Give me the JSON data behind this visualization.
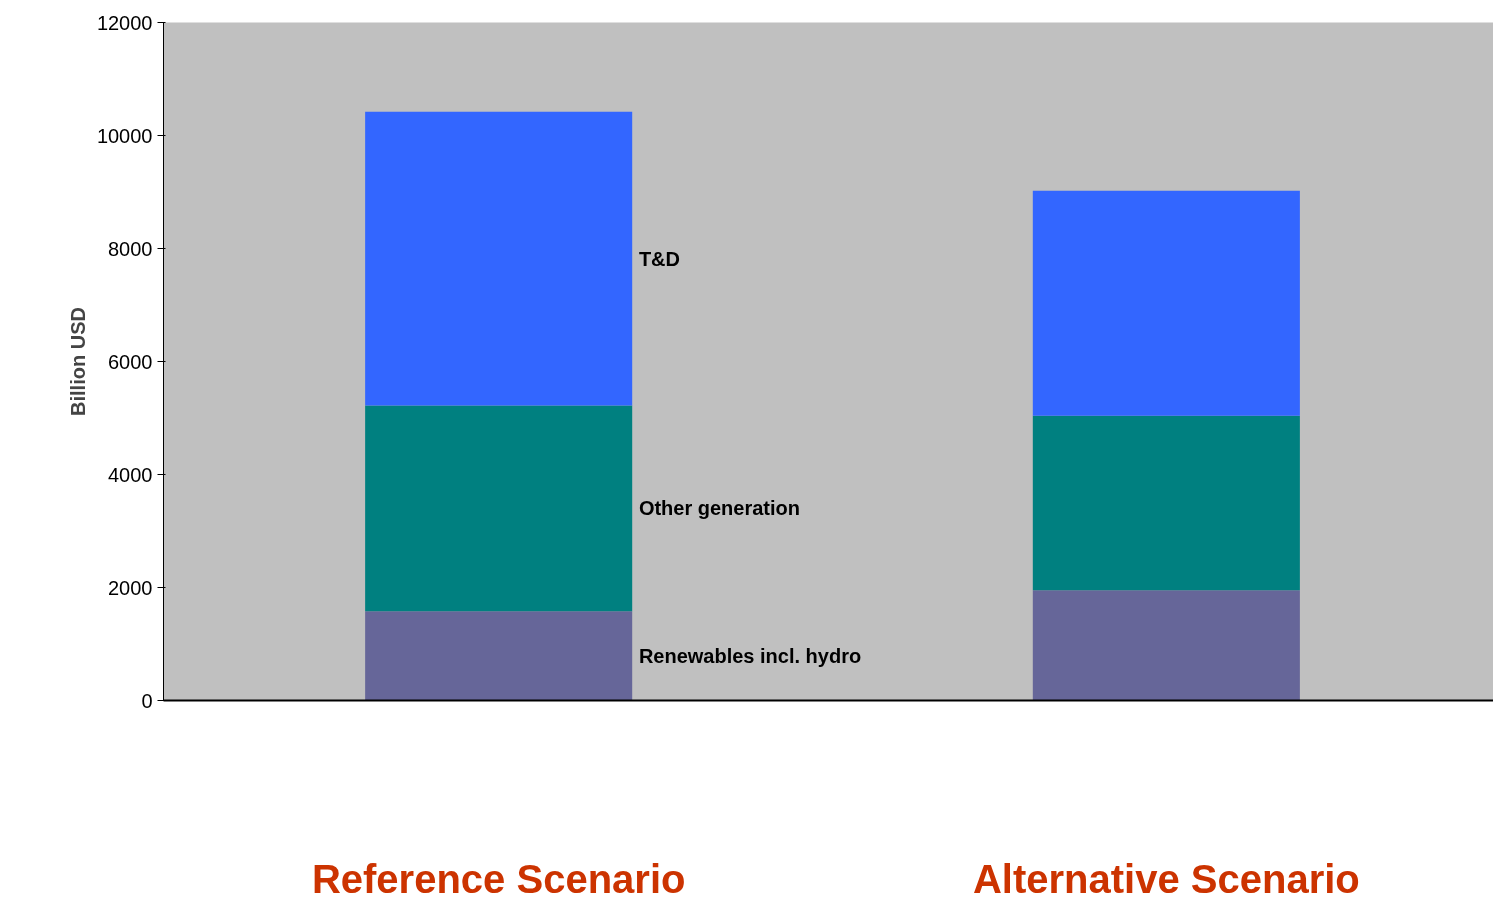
{
  "chart_data": {
    "type": "bar",
    "stacked": true,
    "ylabel": "Billion USD",
    "categories": [
      "Reference Scenario",
      "Alternative Scenario"
    ],
    "series": [
      {
        "name": "Renewables incl. hydro",
        "color": "#666699",
        "values": [
          1580,
          1950
        ]
      },
      {
        "name": "Other generation",
        "color": "#008080",
        "values": [
          3640,
          3090
        ]
      },
      {
        "name": "T&D",
        "color": "#3366ff",
        "values": [
          5200,
          3980
        ]
      }
    ],
    "ylim": [
      0,
      12000
    ],
    "yticks": [
      0,
      2000,
      4000,
      6000,
      8000,
      10000,
      12000
    ],
    "grid": false,
    "legend": false
  }
}
